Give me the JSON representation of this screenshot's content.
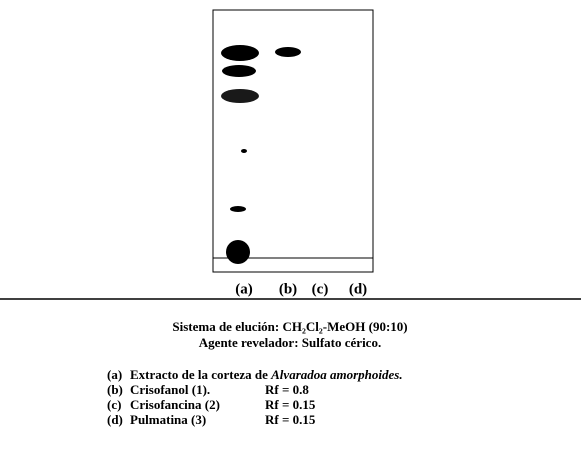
{
  "plate": {
    "lanes": [
      "(a)",
      "(b)",
      "(c)",
      "(d)"
    ]
  },
  "caption": {
    "line1": "Sistema de elución: CH₂Cl₂-MeOH (90:10)",
    "line2": "Agente revelador: Sulfato cérico."
  },
  "legend": {
    "rows": [
      {
        "key": "(a)",
        "name": "Extracto de la corteza de",
        "species": "Alvaradoa amorphoides."
      },
      {
        "key": "(b)",
        "name": "Crisofanol (1).",
        "rf": "Rf = 0.8"
      },
      {
        "key": "(c)",
        "name": "Crisofancina (2)",
        "rf": "Rf = 0.15"
      },
      {
        "key": "(d)",
        "name": "Pulmatina (3)",
        "rf": "Rf = 0.15"
      }
    ]
  }
}
